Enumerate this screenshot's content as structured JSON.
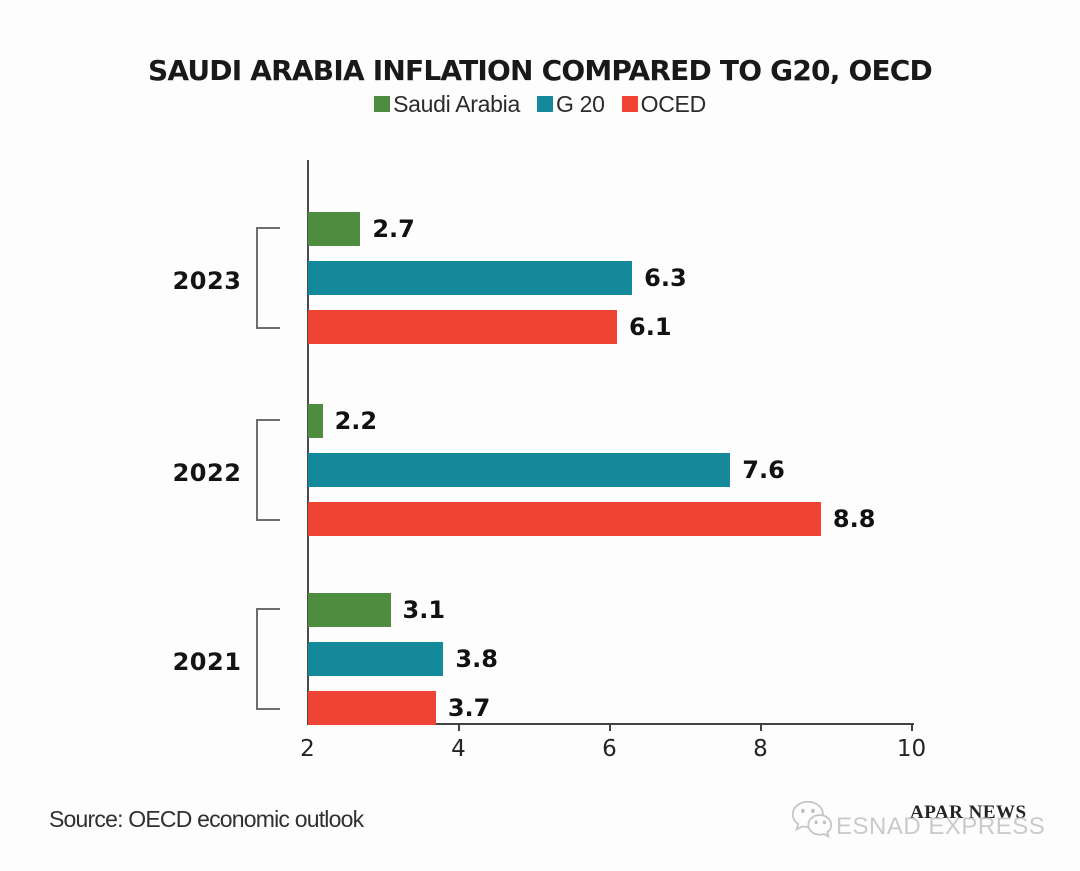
{
  "title": "SAUDI ARABIA INFLATION COMPARED TO G20, OECD",
  "legend": [
    {
      "label": "Saudi Arabia",
      "color": "#4E8C40"
    },
    {
      "label": "G 20",
      "color": "#13899A"
    },
    {
      "label": "OCED",
      "color": "#EF4433"
    }
  ],
  "source": "Source: OECD economic outlook",
  "watermarks": {
    "apar": "APAR NEWS",
    "esnad": "ESNAD EXPRESS",
    "icon": "wechat-icon"
  },
  "chart_data": {
    "type": "bar",
    "orientation": "horizontal",
    "title": "SAUDI ARABIA INFLATION COMPARED TO G20, OECD",
    "categories": [
      "2023",
      "2022",
      "2021"
    ],
    "series": [
      {
        "name": "Saudi Arabia",
        "color": "#4E8C40",
        "values": [
          2.7,
          2.2,
          3.1
        ]
      },
      {
        "name": "G 20",
        "color": "#13899A",
        "values": [
          6.3,
          7.6,
          3.8
        ]
      },
      {
        "name": "OCED",
        "color": "#EF4433",
        "values": [
          6.1,
          8.8,
          3.7
        ]
      }
    ],
    "xlim": [
      2,
      10
    ],
    "xticks": [
      2,
      4,
      6,
      8,
      10
    ],
    "xlabel": "",
    "ylabel": "",
    "grid": false,
    "legend_position": "top",
    "value_labels": true
  }
}
